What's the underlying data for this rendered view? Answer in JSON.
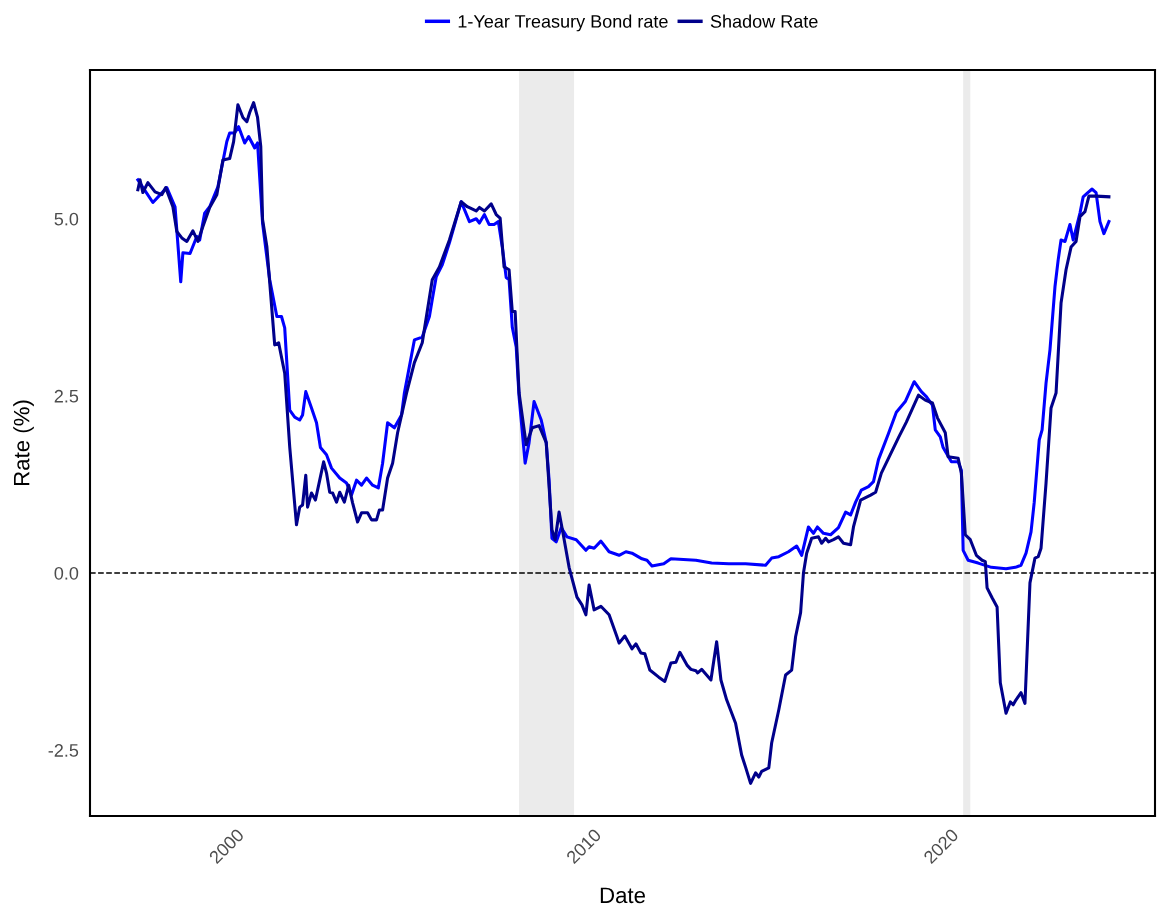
{
  "chart_data": {
    "type": "line",
    "xlabel": "Date",
    "ylabel": "Rate (%)",
    "xlim": [
      1995.92,
      2025.73
    ],
    "xticks": [
      2000,
      2010,
      2020
    ],
    "ylim": [
      -3.43,
      7.1
    ],
    "yticks": [
      {
        "value": -2.5,
        "label": "-2.5"
      },
      {
        "value": 0,
        "label": "0.0"
      },
      {
        "value": 2.5,
        "label": "2.5"
      },
      {
        "value": 5,
        "label": "5.0"
      }
    ],
    "grid": false,
    "legend": "top",
    "line_style": "solid",
    "marker": "none",
    "ref_lines": [
      {
        "axis": "y",
        "value": 0,
        "label": null,
        "color": "#000000",
        "line_style": "dashed"
      }
    ],
    "bands": [
      {
        "axis": "x",
        "from": 2007.93,
        "to": 2009.47,
        "label": null,
        "color": "#ebebeb"
      },
      {
        "axis": "x",
        "from": 2020.36,
        "to": 2020.56,
        "label": null,
        "color": "#ebebeb"
      }
    ],
    "series": [
      {
        "name": "1-Year Treasury Bond rate",
        "color": "#0000ff",
        "x": [
          1997.26,
          1997.68,
          1998.07,
          1998.3,
          1998.46,
          1998.52,
          1998.72,
          1998.91,
          1998.99,
          1999.13,
          1999.27,
          1999.5,
          1999.75,
          1999.83,
          1999.97,
          2000.08,
          2000.25,
          2000.36,
          2000.53,
          2000.61,
          2000.75,
          2000.95,
          2001.15,
          2001.28,
          2001.37,
          2001.51,
          2001.65,
          2001.79,
          2001.87,
          2001.96,
          2002.12,
          2002.26,
          2002.37,
          2002.54,
          2002.68,
          2002.91,
          2003.1,
          2003.24,
          2003.38,
          2003.52,
          2003.66,
          2003.83,
          2003.99,
          2004.11,
          2004.25,
          2004.44,
          2004.64,
          2004.72,
          2005.0,
          2005.22,
          2005.42,
          2005.5,
          2005.61,
          2005.78,
          2005.98,
          2006.31,
          2006.54,
          2006.73,
          2006.82,
          2006.96,
          2007.09,
          2007.23,
          2007.35,
          2007.46,
          2007.57,
          2007.65,
          2007.74,
          2007.85,
          2007.93,
          2008.1,
          2008.21,
          2008.35,
          2008.55,
          2008.69,
          2008.77,
          2008.85,
          2008.97,
          2009.11,
          2009.27,
          2009.53,
          2009.8,
          2009.89,
          2010.03,
          2010.22,
          2010.45,
          2010.73,
          2010.92,
          2011.09,
          2011.37,
          2011.51,
          2011.65,
          2011.98,
          2012.18,
          2012.88,
          2013.32,
          2013.8,
          2014.27,
          2014.83,
          2015.0,
          2015.2,
          2015.47,
          2015.7,
          2015.84,
          2016.03,
          2016.17,
          2016.28,
          2016.45,
          2016.65,
          2016.87,
          2017.07,
          2017.21,
          2017.35,
          2017.51,
          2017.71,
          2017.85,
          2017.99,
          2018.27,
          2018.49,
          2018.74,
          2018.99,
          2019.19,
          2019.33,
          2019.5,
          2019.58,
          2019.72,
          2019.8,
          2020.03,
          2020.22,
          2020.31,
          2020.36,
          2020.5,
          2020.78,
          2021.15,
          2021.56,
          2021.82,
          2021.98,
          2022.12,
          2022.26,
          2022.35,
          2022.49,
          2022.57,
          2022.68,
          2022.79,
          2022.93,
          2023.02,
          2023.1,
          2023.21,
          2023.35,
          2023.44,
          2023.63,
          2023.72,
          2023.85,
          2023.97,
          2024.08,
          2024.19,
          2024.3,
          2024.44
        ],
        "values": [
          5.55,
          5.23,
          5.44,
          5.17,
          4.11,
          4.52,
          4.51,
          4.75,
          4.7,
          5.08,
          5.17,
          5.45,
          6.09,
          6.21,
          6.21,
          6.3,
          6.07,
          6.16,
          6.0,
          6.07,
          4.94,
          4.14,
          3.62,
          3.62,
          3.46,
          2.3,
          2.2,
          2.16,
          2.23,
          2.56,
          2.33,
          2.12,
          1.77,
          1.67,
          1.48,
          1.34,
          1.27,
          1.1,
          1.31,
          1.24,
          1.34,
          1.24,
          1.2,
          1.55,
          2.12,
          2.05,
          2.23,
          2.54,
          3.29,
          3.33,
          3.62,
          3.86,
          4.18,
          4.35,
          4.66,
          5.24,
          4.96,
          5.0,
          4.94,
          5.06,
          4.92,
          4.92,
          4.96,
          4.6,
          4.17,
          4.14,
          3.47,
          3.19,
          2.49,
          1.55,
          1.84,
          2.42,
          2.16,
          1.84,
          1.31,
          0.49,
          0.44,
          0.64,
          0.51,
          0.47,
          0.32,
          0.37,
          0.35,
          0.45,
          0.3,
          0.25,
          0.3,
          0.28,
          0.2,
          0.18,
          0.1,
          0.13,
          0.2,
          0.18,
          0.14,
          0.13,
          0.13,
          0.11,
          0.21,
          0.23,
          0.3,
          0.38,
          0.25,
          0.65,
          0.56,
          0.65,
          0.56,
          0.54,
          0.64,
          0.86,
          0.82,
          1.0,
          1.17,
          1.22,
          1.29,
          1.6,
          1.97,
          2.27,
          2.42,
          2.7,
          2.56,
          2.49,
          2.37,
          2.02,
          1.92,
          1.77,
          1.57,
          1.57,
          1.45,
          0.32,
          0.18,
          0.14,
          0.08,
          0.06,
          0.08,
          0.11,
          0.28,
          0.58,
          1.0,
          1.88,
          2.02,
          2.68,
          3.15,
          4.04,
          4.42,
          4.7,
          4.68,
          4.92,
          4.7,
          5.08,
          5.31,
          5.37,
          5.42,
          5.37,
          4.96,
          4.79,
          4.96
        ]
      },
      {
        "name": "Shadow Rate",
        "color": "#00008b",
        "x": [
          1997.26,
          1997.32,
          1997.4,
          1997.54,
          1997.74,
          1997.93,
          1998.04,
          1998.24,
          1998.35,
          1998.49,
          1998.63,
          1998.8,
          1998.94,
          1999.08,
          1999.27,
          1999.47,
          1999.64,
          1999.83,
          1999.94,
          2000.06,
          2000.2,
          2000.31,
          2000.39,
          2000.5,
          2000.61,
          2000.7,
          2000.75,
          2000.87,
          2001.09,
          2001.2,
          2001.37,
          2001.51,
          2001.7,
          2001.79,
          2001.87,
          2001.96,
          2002.01,
          2002.12,
          2002.23,
          2002.35,
          2002.46,
          2002.54,
          2002.63,
          2002.71,
          2002.82,
          2002.91,
          2003.04,
          2003.16,
          2003.27,
          2003.41,
          2003.52,
          2003.69,
          2003.8,
          2003.94,
          2004.02,
          2004.11,
          2004.25,
          2004.39,
          2004.53,
          2004.78,
          2005.0,
          2005.22,
          2005.5,
          2005.7,
          2005.98,
          2006.31,
          2006.48,
          2006.73,
          2006.82,
          2006.96,
          2007.15,
          2007.29,
          2007.4,
          2007.51,
          2007.65,
          2007.74,
          2007.82,
          2007.93,
          2008.13,
          2008.3,
          2008.49,
          2008.69,
          2008.85,
          2008.94,
          2009.05,
          2009.16,
          2009.33,
          2009.55,
          2009.69,
          2009.8,
          2009.89,
          2010.03,
          2010.22,
          2010.45,
          2010.67,
          2010.73,
          2010.89,
          2011.09,
          2011.2,
          2011.34,
          2011.45,
          2011.59,
          2011.84,
          2012.01,
          2012.18,
          2012.32,
          2012.43,
          2012.63,
          2012.74,
          2012.88,
          2012.93,
          2013.04,
          2013.3,
          2013.46,
          2013.58,
          2013.74,
          2013.99,
          2014.16,
          2014.27,
          2014.41,
          2014.55,
          2014.64,
          2014.72,
          2014.92,
          2015.0,
          2015.2,
          2015.39,
          2015.56,
          2015.67,
          2015.81,
          2015.89,
          2015.98,
          2016.12,
          2016.31,
          2016.4,
          2016.51,
          2016.59,
          2016.73,
          2016.87,
          2017.01,
          2017.21,
          2017.29,
          2017.49,
          2017.77,
          2017.91,
          2018.07,
          2018.32,
          2018.55,
          2018.77,
          2019.11,
          2019.3,
          2019.5,
          2019.64,
          2019.86,
          2019.94,
          2020.22,
          2020.31,
          2020.42,
          2020.56,
          2020.73,
          2020.89,
          2020.98,
          2021.03,
          2021.17,
          2021.31,
          2021.4,
          2021.56,
          2021.68,
          2021.76,
          2021.84,
          2021.98,
          2022.09,
          2022.23,
          2022.37,
          2022.46,
          2022.54,
          2022.68,
          2022.82,
          2022.96,
          2023.1,
          2023.24,
          2023.38,
          2023.52,
          2023.63,
          2023.77,
          2023.88,
          2024.08,
          2024.44
        ],
        "values": [
          5.41,
          5.55,
          5.37,
          5.51,
          5.38,
          5.34,
          5.44,
          5.17,
          4.82,
          4.73,
          4.68,
          4.83,
          4.68,
          4.89,
          5.16,
          5.34,
          5.83,
          5.85,
          6.09,
          6.61,
          6.43,
          6.37,
          6.5,
          6.64,
          6.43,
          6.02,
          4.99,
          4.61,
          3.22,
          3.25,
          2.82,
          1.78,
          0.68,
          0.93,
          0.96,
          1.38,
          0.93,
          1.13,
          1.03,
          1.31,
          1.57,
          1.41,
          1.14,
          1.13,
          1.0,
          1.14,
          1.0,
          1.24,
          0.99,
          0.72,
          0.85,
          0.85,
          0.75,
          0.75,
          0.89,
          0.89,
          1.34,
          1.55,
          1.98,
          2.54,
          2.97,
          3.25,
          4.14,
          4.32,
          4.7,
          5.24,
          5.17,
          5.11,
          5.16,
          5.11,
          5.21,
          5.06,
          5.01,
          4.32,
          4.28,
          3.69,
          3.69,
          2.54,
          1.81,
          2.05,
          2.08,
          1.84,
          0.61,
          0.47,
          0.86,
          0.56,
          0.08,
          -0.34,
          -0.45,
          -0.59,
          -0.17,
          -0.52,
          -0.47,
          -0.59,
          -0.9,
          -0.99,
          -0.89,
          -1.07,
          -1.0,
          -1.13,
          -1.14,
          -1.37,
          -1.47,
          -1.53,
          -1.27,
          -1.26,
          -1.12,
          -1.3,
          -1.36,
          -1.38,
          -1.41,
          -1.36,
          -1.51,
          -0.97,
          -1.51,
          -1.79,
          -2.12,
          -2.57,
          -2.74,
          -2.97,
          -2.82,
          -2.88,
          -2.8,
          -2.75,
          -2.4,
          -1.93,
          -1.44,
          -1.37,
          -0.9,
          -0.56,
          0.0,
          0.28,
          0.49,
          0.51,
          0.42,
          0.49,
          0.44,
          0.47,
          0.51,
          0.42,
          0.4,
          0.65,
          1.03,
          1.1,
          1.14,
          1.41,
          1.67,
          1.91,
          2.13,
          2.51,
          2.44,
          2.4,
          2.19,
          1.98,
          1.64,
          1.62,
          1.41,
          0.54,
          0.47,
          0.25,
          0.18,
          0.16,
          -0.21,
          -0.35,
          -0.48,
          -1.55,
          -1.98,
          -1.82,
          -1.86,
          -1.79,
          -1.69,
          -1.84,
          -0.14,
          0.21,
          0.23,
          0.35,
          1.27,
          2.33,
          2.54,
          3.81,
          4.28,
          4.6,
          4.68,
          5.03,
          5.1,
          5.32,
          5.32,
          5.31
        ]
      }
    ]
  }
}
